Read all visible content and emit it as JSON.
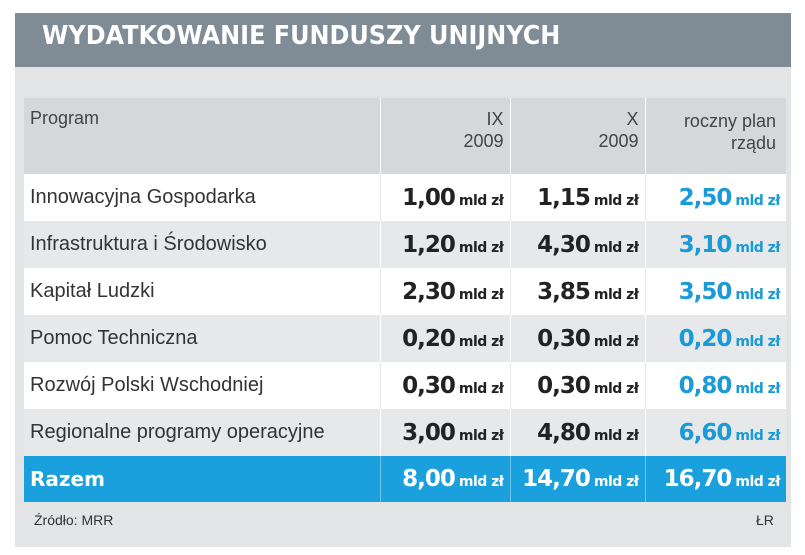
{
  "title": "WYDATKOWANIE FUNDUSZY UNIJNYCH",
  "columns": {
    "program": "Program",
    "ix_line1": "IX",
    "ix_line2": "2009",
    "x_line1": "X",
    "x_line2": "2009",
    "plan_line1": "roczny plan",
    "plan_line2": "rządu"
  },
  "unit": "mld zł",
  "rows": [
    {
      "program": "Innowacyjna Gospodarka",
      "ix": "1,00",
      "x": "1,15",
      "plan": "2,50"
    },
    {
      "program": "Infrastruktura i Środowisko",
      "ix": "1,20",
      "x": "4,30",
      "plan": "3,10"
    },
    {
      "program": "Kapitał Ludzki",
      "ix": "2,30",
      "x": "3,85",
      "plan": "3,50"
    },
    {
      "program": "Pomoc Techniczna",
      "ix": "0,20",
      "x": "0,30",
      "plan": "0,20"
    },
    {
      "program": "Rozwój Polski Wschodniej",
      "ix": "0,30",
      "x": "0,30",
      "plan": "0,80"
    },
    {
      "program": "Regionalne programy operacyjne",
      "ix": "3,00",
      "x": "4,80",
      "plan": "6,60"
    }
  ],
  "total": {
    "program": "Razem",
    "ix": "8,00",
    "x": "14,70",
    "plan": "16,70"
  },
  "source": "Źródło: MRR",
  "author": "ŁR",
  "colors": {
    "header_bar": "#7f8c95",
    "accent": "#1aa0dc",
    "plan_text": "#1a9ad6"
  }
}
